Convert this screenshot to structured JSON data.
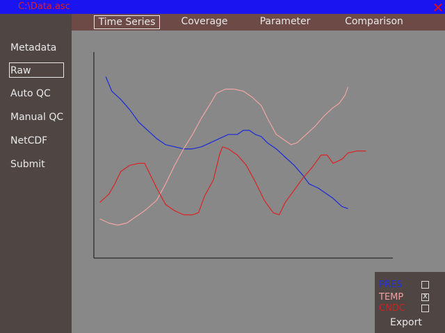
{
  "window": {
    "title": "C:\\Data.asc",
    "close_glyph": "✕"
  },
  "sidebar": {
    "items": [
      {
        "label": "Metadata",
        "selected": false
      },
      {
        "label": "Raw",
        "selected": true
      },
      {
        "label": "Auto QC",
        "selected": false
      },
      {
        "label": "Manual QC",
        "selected": false
      },
      {
        "label": "NetCDF",
        "selected": false
      },
      {
        "label": "Submit",
        "selected": false
      }
    ]
  },
  "tabs": [
    {
      "label": "Time Series",
      "selected": true
    },
    {
      "label": "Coverage",
      "selected": false
    },
    {
      "label": "Parameter",
      "selected": false
    },
    {
      "label": "Comparison",
      "selected": false
    }
  ],
  "legend": {
    "items": [
      {
        "label": "PRES",
        "color": "#2233dd",
        "check": ""
      },
      {
        "label": "TEMP",
        "color": "#f0a0a0",
        "check": "X"
      },
      {
        "label": "CNDC",
        "color": "#cc2222",
        "check": ""
      }
    ],
    "export_label": "Export"
  },
  "chart_data": {
    "type": "line",
    "grid": false,
    "xlim": [
      0,
      100
    ],
    "ylim": [
      0,
      100
    ],
    "series": [
      {
        "color": "#1a2ad8",
        "points": [
          [
            4,
            88
          ],
          [
            6,
            81
          ],
          [
            9,
            77
          ],
          [
            12,
            72
          ],
          [
            15,
            66
          ],
          [
            18,
            62
          ],
          [
            21,
            58
          ],
          [
            24,
            55
          ],
          [
            27,
            54
          ],
          [
            30,
            53
          ],
          [
            33,
            53
          ],
          [
            36,
            54
          ],
          [
            39,
            56
          ],
          [
            42,
            58
          ],
          [
            45,
            60
          ],
          [
            48,
            60
          ],
          [
            50,
            62
          ],
          [
            52,
            62
          ],
          [
            54,
            60
          ],
          [
            56,
            59
          ],
          [
            58,
            56
          ],
          [
            61,
            53
          ],
          [
            64,
            49
          ],
          [
            67,
            45
          ],
          [
            70,
            40
          ],
          [
            72,
            36
          ],
          [
            75,
            34
          ],
          [
            78,
            31
          ],
          [
            80,
            29
          ],
          [
            83,
            25
          ],
          [
            85,
            24
          ]
        ]
      },
      {
        "color": "#f2a6a2",
        "points": [
          [
            2,
            19
          ],
          [
            5,
            17
          ],
          [
            8,
            16
          ],
          [
            11,
            17
          ],
          [
            14,
            20
          ],
          [
            17,
            23
          ],
          [
            21,
            28
          ],
          [
            24,
            36
          ],
          [
            27,
            45
          ],
          [
            30,
            53
          ],
          [
            33,
            60
          ],
          [
            36,
            68
          ],
          [
            39,
            75
          ],
          [
            41,
            80
          ],
          [
            44,
            82
          ],
          [
            47,
            82
          ],
          [
            50,
            81
          ],
          [
            53,
            78
          ],
          [
            56,
            74
          ],
          [
            58,
            68
          ],
          [
            61,
            60
          ],
          [
            64,
            57
          ],
          [
            66,
            55
          ],
          [
            68,
            56
          ],
          [
            71,
            60
          ],
          [
            74,
            64
          ],
          [
            77,
            69
          ],
          [
            80,
            73
          ],
          [
            82,
            75
          ],
          [
            84,
            79
          ],
          [
            85,
            83
          ]
        ]
      },
      {
        "color": "#dc2222",
        "points": [
          [
            2,
            27
          ],
          [
            5,
            31
          ],
          [
            7,
            36
          ],
          [
            9,
            42
          ],
          [
            12,
            45
          ],
          [
            15,
            46
          ],
          [
            17,
            46
          ],
          [
            19,
            40
          ],
          [
            21,
            34
          ],
          [
            24,
            26
          ],
          [
            27,
            23
          ],
          [
            30,
            21
          ],
          [
            33,
            21
          ],
          [
            35,
            22
          ],
          [
            37,
            30
          ],
          [
            40,
            38
          ],
          [
            42,
            50
          ],
          [
            43,
            54
          ],
          [
            45,
            53
          ],
          [
            48,
            50
          ],
          [
            51,
            45
          ],
          [
            54,
            37
          ],
          [
            57,
            28
          ],
          [
            60,
            22
          ],
          [
            62,
            21
          ],
          [
            64,
            27
          ],
          [
            67,
            33
          ],
          [
            70,
            39
          ],
          [
            73,
            44
          ],
          [
            76,
            50
          ],
          [
            78,
            50
          ],
          [
            80,
            46
          ],
          [
            83,
            48
          ],
          [
            85,
            51
          ],
          [
            88,
            52
          ],
          [
            91,
            52
          ]
        ]
      }
    ]
  }
}
